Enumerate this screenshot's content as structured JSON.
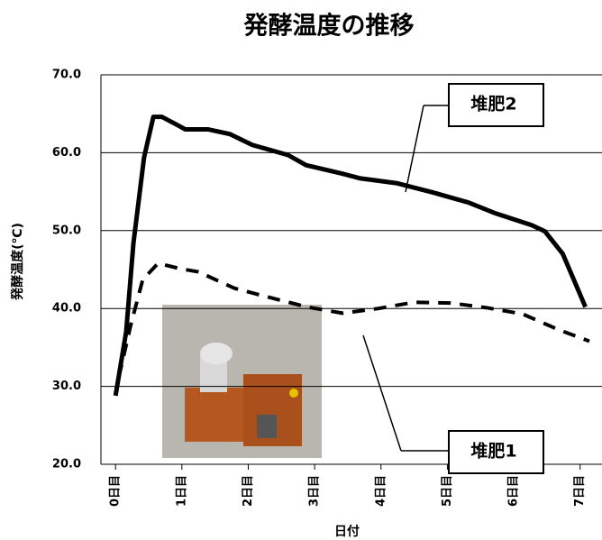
{
  "chart_data": {
    "type": "line",
    "title": "発酵温度の推移",
    "x_label": "日付",
    "y_label": "発酵温度(℃)",
    "xlim": [
      -0.22,
      7.33
    ],
    "ylim": [
      20,
      70
    ],
    "xticks": [
      {
        "value": 0,
        "label": "0日目"
      },
      {
        "value": 1,
        "label": "1日目"
      },
      {
        "value": 2,
        "label": "2日目"
      },
      {
        "value": 3,
        "label": "3日目"
      },
      {
        "value": 4,
        "label": "4日目"
      },
      {
        "value": 5,
        "label": "5日目"
      },
      {
        "value": 6,
        "label": "6日目"
      },
      {
        "value": 7,
        "label": "7日目"
      }
    ],
    "yticks": [
      {
        "value": 20,
        "label": "20.0"
      },
      {
        "value": 30,
        "label": "30.0"
      },
      {
        "value": 40,
        "label": "40.0"
      },
      {
        "value": 50,
        "label": "50.0"
      },
      {
        "value": 60,
        "label": "60.0"
      },
      {
        "value": 70,
        "label": "70.0"
      }
    ],
    "grid": true,
    "series": [
      {
        "name": "堆肥2",
        "color": "#000000",
        "dash": false,
        "x": [
          0,
          0.16,
          0.27,
          0.43,
          0.57,
          0.7,
          0.9,
          1.05,
          1.39,
          1.72,
          2.06,
          2.6,
          2.87,
          3.42,
          3.69,
          4.23,
          4.78,
          5.32,
          5.73,
          6.27,
          6.47,
          6.74,
          7.08
        ],
        "values": [
          28.8,
          37,
          48.4,
          59.4,
          64.6,
          64.6,
          63.7,
          63,
          63,
          62.4,
          61,
          59.7,
          58.4,
          57.3,
          56.7,
          56.1,
          54.9,
          53.6,
          52.2,
          50.7,
          49.9,
          47,
          40.2
        ]
      },
      {
        "name": "堆肥1",
        "color": "#000000",
        "dash": true,
        "x": [
          0.05,
          0.23,
          0.41,
          0.64,
          0.98,
          1.25,
          1.79,
          2.33,
          2.88,
          3.42,
          3.96,
          4.5,
          5.05,
          5.59,
          6.13,
          6.67,
          7.14
        ],
        "values": [
          31.2,
          37.9,
          43.7,
          45.8,
          45.1,
          44.7,
          42.6,
          41.4,
          40.2,
          39.4,
          40,
          40.8,
          40.7,
          40.1,
          39.3,
          37.3,
          35.8
        ]
      }
    ]
  }
}
